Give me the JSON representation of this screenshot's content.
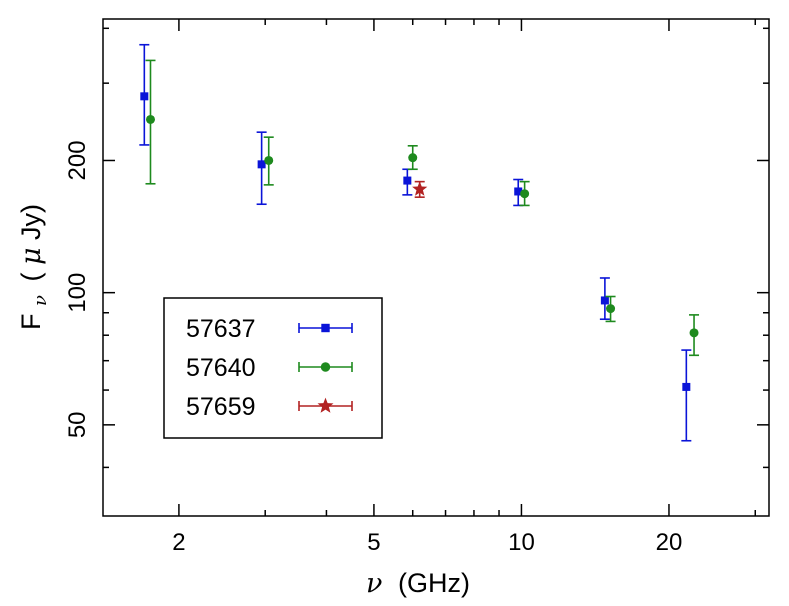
{
  "chart_data": {
    "type": "scatter",
    "title": "",
    "xlabel": "ν (GHz)",
    "xlabel_symbol": "ν",
    "xlabel_unit": "(GHz)",
    "ylabel": "Fν (μJy)",
    "ylabel_base": "F",
    "ylabel_sub": "ν",
    "ylabel_unit_open": "(",
    "ylabel_unit_mu": "μ",
    "ylabel_unit_rest": "Jy)",
    "xscale": "log",
    "yscale": "log",
    "xlim": [
      1.4,
      32
    ],
    "ylim": [
      31,
      420
    ],
    "xticks": [
      {
        "value": 2,
        "label": "2"
      },
      {
        "value": 5,
        "label": "5"
      },
      {
        "value": 10,
        "label": "10"
      },
      {
        "value": 20,
        "label": "20"
      }
    ],
    "xminor": [
      3,
      4,
      6,
      7,
      8,
      9,
      30
    ],
    "yticks": [
      {
        "value": 50,
        "label": "50"
      },
      {
        "value": 100,
        "label": "100"
      },
      {
        "value": 200,
        "label": "200"
      }
    ],
    "yminor": [
      40,
      60,
      70,
      80,
      90,
      300,
      400
    ],
    "legend_position": "bottom-left",
    "series": [
      {
        "name": "57637",
        "color": "#0a14d8",
        "marker": "square",
        "points": [
          {
            "x": 1.7,
            "y": 280,
            "ylo": 217,
            "yhi": 367
          },
          {
            "x": 2.95,
            "y": 196,
            "ylo": 159,
            "yhi": 232
          },
          {
            "x": 5.85,
            "y": 180,
            "ylo": 167,
            "yhi": 191
          },
          {
            "x": 9.85,
            "y": 170,
            "ylo": 158,
            "yhi": 181
          },
          {
            "x": 14.8,
            "y": 96,
            "ylo": 87,
            "yhi": 108
          },
          {
            "x": 21.7,
            "y": 61,
            "ylo": 46,
            "yhi": 74
          }
        ]
      },
      {
        "name": "57640",
        "color": "#1e8a1e",
        "marker": "circle",
        "points": [
          {
            "x": 1.75,
            "y": 248,
            "ylo": 177,
            "yhi": 338
          },
          {
            "x": 3.05,
            "y": 200,
            "ylo": 176,
            "yhi": 226
          },
          {
            "x": 6.0,
            "y": 203,
            "ylo": 191,
            "yhi": 216
          },
          {
            "x": 10.15,
            "y": 168,
            "ylo": 158,
            "yhi": 179
          },
          {
            "x": 15.2,
            "y": 92,
            "ylo": 86,
            "yhi": 98
          },
          {
            "x": 22.5,
            "y": 81,
            "ylo": 72,
            "yhi": 89
          }
        ]
      },
      {
        "name": "57659",
        "color": "#b22222",
        "marker": "star",
        "points": [
          {
            "x": 6.2,
            "y": 172,
            "ylo": 165,
            "yhi": 179
          }
        ]
      }
    ]
  }
}
